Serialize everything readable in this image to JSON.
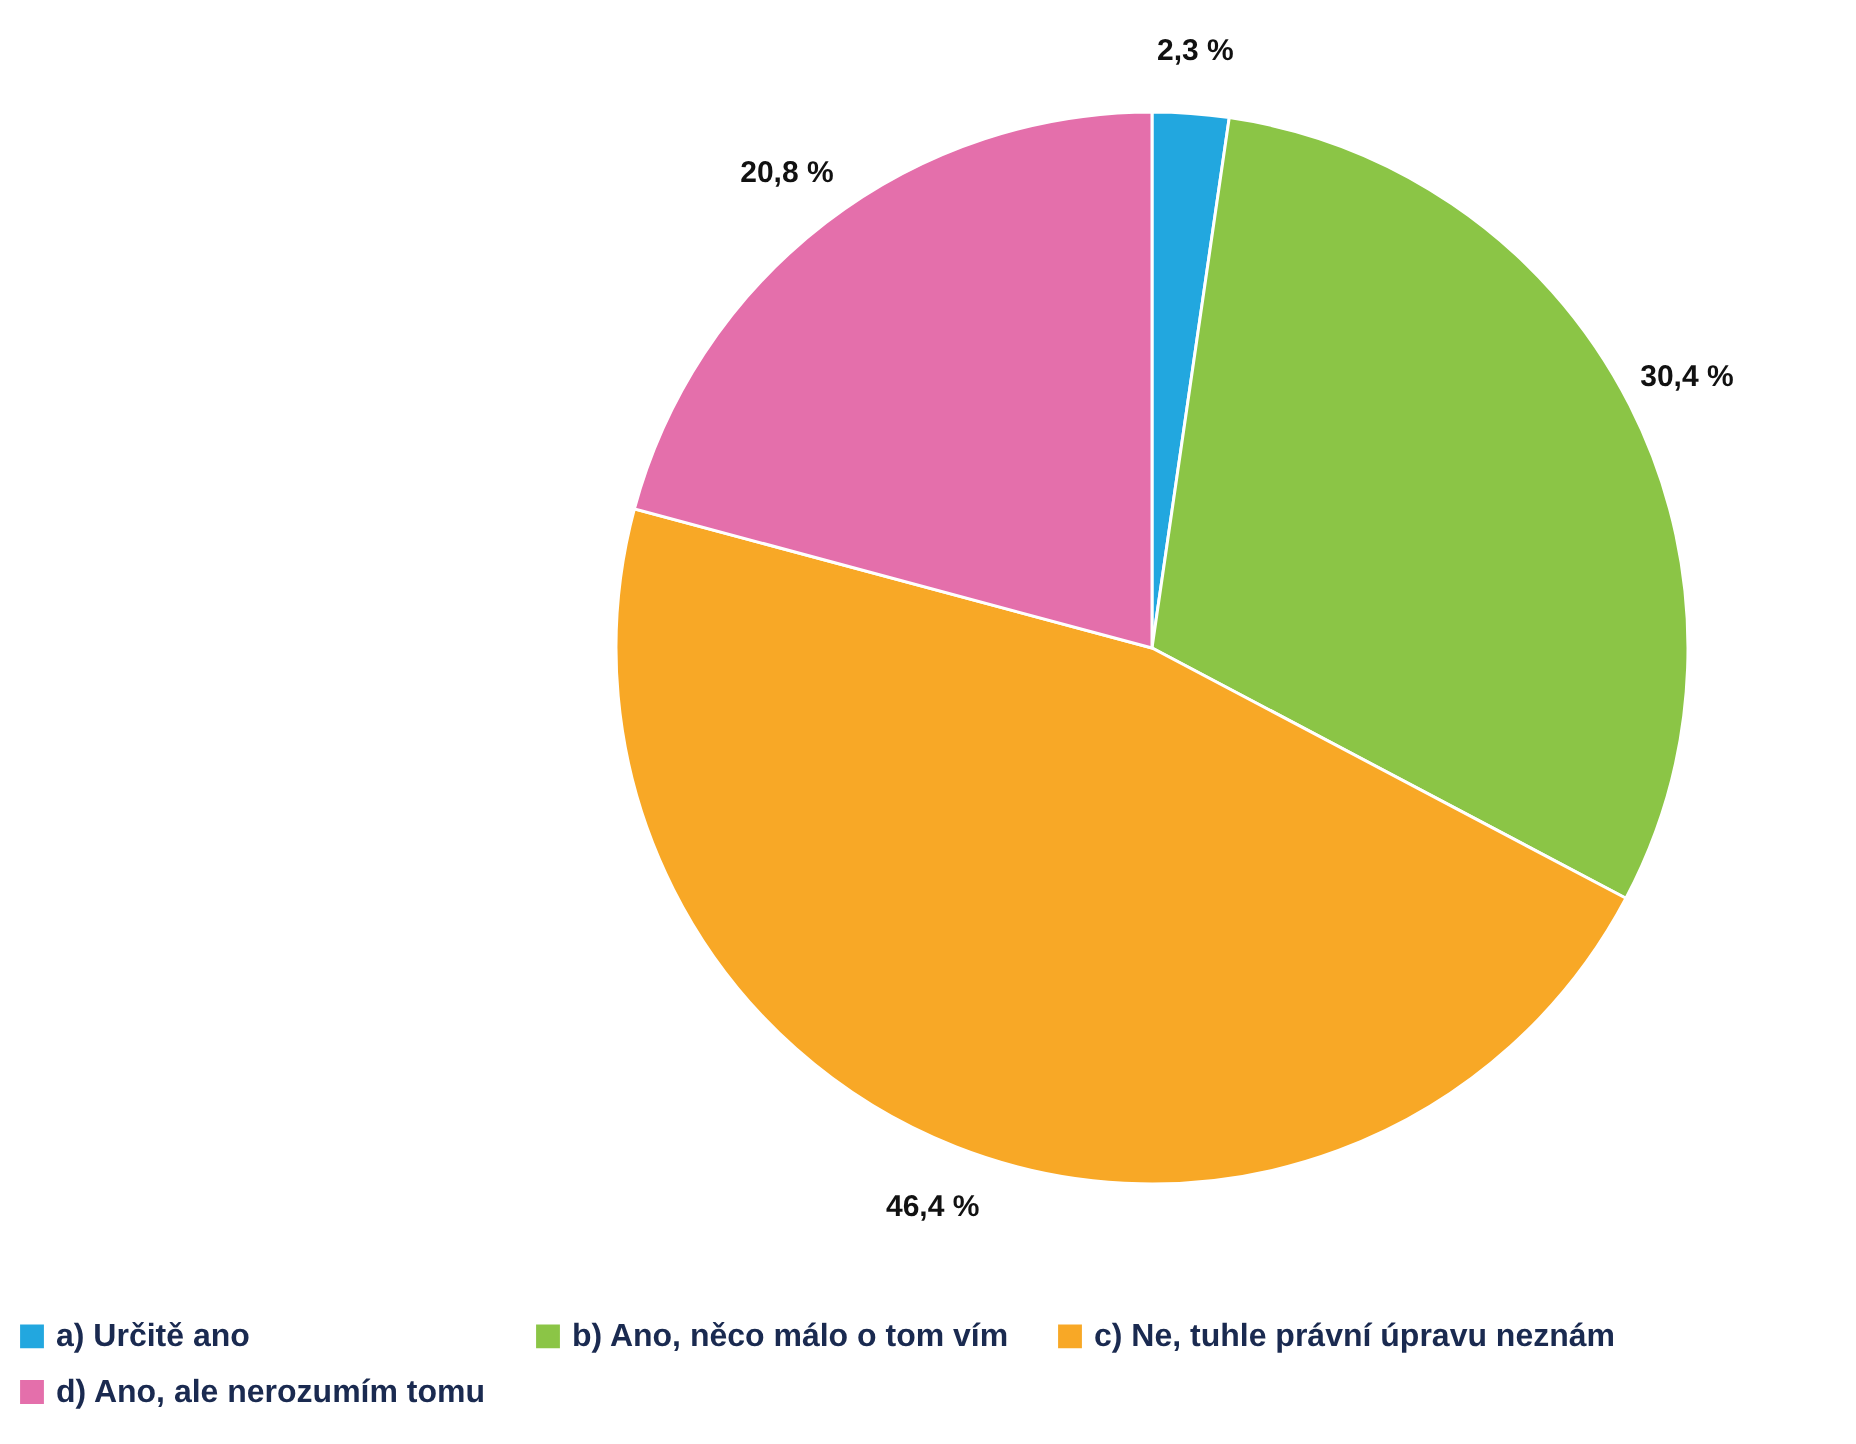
{
  "chart_data": {
    "type": "pie",
    "categories": [
      "a) Určitě ano",
      "b) Ano, něco málo o tom vím",
      "c) Ne, tuhle právní úpravu neznám",
      "d) Ano, ale nerozumím tomu"
    ],
    "values": [
      2.3,
      30.4,
      46.4,
      20.8
    ],
    "colors": [
      "#22a7df",
      "#8bc546",
      "#f8a826",
      "#e46fab"
    ],
    "value_labels": [
      "2,3 %",
      "30,4 %",
      "46,4 %",
      "20,8 %"
    ],
    "legend": "bottom"
  }
}
